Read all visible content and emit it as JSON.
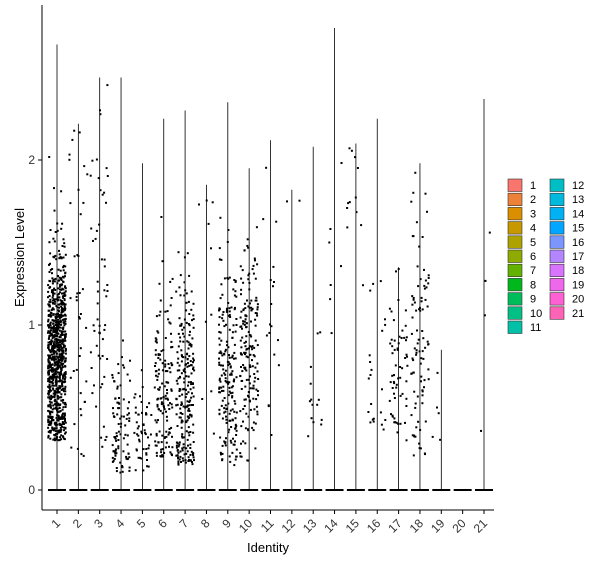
{
  "chart_data": {
    "type": "violin",
    "xlabel": "Identity",
    "ylabel": "Expression Level",
    "ylim": [
      -0.12,
      2.9
    ],
    "yticks": [
      0,
      1,
      2
    ],
    "legend": {
      "placement": "right",
      "columns": 2
    },
    "categories": [
      "1",
      "2",
      "3",
      "4",
      "5",
      "6",
      "7",
      "8",
      "9",
      "10",
      "11",
      "12",
      "13",
      "14",
      "15",
      "16",
      "17",
      "18",
      "19",
      "20",
      "21"
    ],
    "colors": [
      "#F8766D",
      "#EC8239",
      "#DB8E00",
      "#C79800",
      "#AEA200",
      "#8FAA00",
      "#64B200",
      "#00B81B",
      "#00BD5C",
      "#00C085",
      "#00C1A7",
      "#00BFC4",
      "#00BADE",
      "#00B2F3",
      "#00A6FF",
      "#7C96FF",
      "#B385FF",
      "#D874FD",
      "#EF67EB",
      "#FD61D3",
      "#FF63B6"
    ],
    "violins": [
      {
        "n_zero": 0,
        "n_points": 900,
        "y_min": 0.3,
        "y_max": 2.7,
        "center": 0.8,
        "spread": 0.32
      },
      {
        "n_zero": 120,
        "n_points": 40,
        "y_min": 0.2,
        "y_max": 2.22,
        "center": 1.2,
        "spread": 0.6
      },
      {
        "n_zero": 120,
        "n_points": 55,
        "y_min": 0.2,
        "y_max": 2.5,
        "center": 1.2,
        "spread": 0.6
      },
      {
        "n_zero": 120,
        "n_points": 90,
        "y_min": 0.1,
        "y_max": 2.5,
        "center": 0.35,
        "spread": 0.25
      },
      {
        "n_zero": 120,
        "n_points": 50,
        "y_min": 0.1,
        "y_max": 1.98,
        "center": 0.3,
        "spread": 0.2
      },
      {
        "n_zero": 120,
        "n_points": 140,
        "y_min": 0.2,
        "y_max": 2.25,
        "center": 0.6,
        "spread": 0.3
      },
      {
        "n_zero": 120,
        "n_points": 230,
        "y_min": 0.15,
        "y_max": 2.3,
        "center": 0.6,
        "spread": 0.35
      },
      {
        "n_zero": 120,
        "n_points": 10,
        "y_min": 0.25,
        "y_max": 1.85,
        "center": 0.8,
        "spread": 0.5
      },
      {
        "n_zero": 120,
        "n_points": 190,
        "y_min": 0.15,
        "y_max": 2.35,
        "center": 0.7,
        "spread": 0.35
      },
      {
        "n_zero": 120,
        "n_points": 170,
        "y_min": 0.15,
        "y_max": 1.95,
        "center": 0.8,
        "spread": 0.35
      },
      {
        "n_zero": 120,
        "n_points": 18,
        "y_min": 0.3,
        "y_max": 2.12,
        "center": 0.9,
        "spread": 0.5
      },
      {
        "n_zero": 120,
        "n_points": 2,
        "y_min": 1.8,
        "y_max": 1.82,
        "center": 1.8,
        "spread": 0.05
      },
      {
        "n_zero": 120,
        "n_points": 14,
        "y_min": 0.3,
        "y_max": 2.08,
        "center": 0.5,
        "spread": 0.3
      },
      {
        "n_zero": 120,
        "n_points": 7,
        "y_min": 0.25,
        "y_max": 2.8,
        "center": 1.3,
        "spread": 0.6
      },
      {
        "n_zero": 120,
        "n_points": 12,
        "y_min": 1.2,
        "y_max": 2.1,
        "center": 1.7,
        "spread": 0.3
      },
      {
        "n_zero": 120,
        "n_points": 22,
        "y_min": 0.3,
        "y_max": 2.25,
        "center": 0.6,
        "spread": 0.4
      },
      {
        "n_zero": 120,
        "n_points": 60,
        "y_min": 0.3,
        "y_max": 1.35,
        "center": 0.7,
        "spread": 0.3
      },
      {
        "n_zero": 120,
        "n_points": 90,
        "y_min": 0.2,
        "y_max": 1.98,
        "center": 0.9,
        "spread": 0.45
      },
      {
        "n_zero": 120,
        "n_points": 5,
        "y_min": 0.3,
        "y_max": 0.85,
        "center": 0.5,
        "spread": 0.2
      },
      {
        "n_zero": 120,
        "n_points": 0,
        "y_min": 0,
        "y_max": 0,
        "center": 0,
        "spread": 0
      },
      {
        "n_zero": 120,
        "n_points": 4,
        "y_min": 0.3,
        "y_max": 2.37,
        "center": 1.2,
        "spread": 0.7
      }
    ]
  }
}
